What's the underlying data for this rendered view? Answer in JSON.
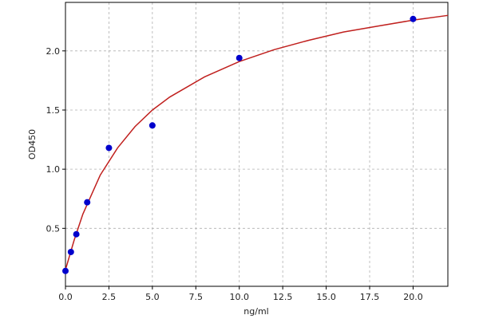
{
  "chart_data": {
    "type": "scatter",
    "x_label": "ng/ml",
    "y_label": "OD450",
    "xlim": [
      0,
      22
    ],
    "ylim": [
      0.01,
      2.41
    ],
    "xticks": [
      {
        "value": 0,
        "label": "0.0"
      },
      {
        "value": 2.5,
        "label": "2.5"
      },
      {
        "value": 5,
        "label": "5.0"
      },
      {
        "value": 7.5,
        "label": "7.5"
      },
      {
        "value": 10,
        "label": "10.0"
      },
      {
        "value": 12.5,
        "label": "12.5"
      },
      {
        "value": 15,
        "label": "15.0"
      },
      {
        "value": 17.5,
        "label": "17.5"
      },
      {
        "value": 20,
        "label": "20.0"
      }
    ],
    "yticks": [
      {
        "value": 0.5,
        "label": "0.5"
      },
      {
        "value": 1,
        "label": "1.0"
      },
      {
        "value": 1.5,
        "label": "1.5"
      },
      {
        "value": 2,
        "label": "2.0"
      }
    ],
    "grid": true,
    "series": [
      {
        "kind": "line",
        "color": "#c0201e",
        "x": [
          0,
          0.5,
          1,
          2,
          3,
          4,
          5,
          6,
          8,
          10,
          12,
          14,
          16,
          18,
          20,
          22
        ],
        "values": [
          0.15,
          0.4,
          0.62,
          0.95,
          1.18,
          1.36,
          1.5,
          1.61,
          1.78,
          1.91,
          2.01,
          2.09,
          2.16,
          2.21,
          2.26,
          2.3
        ]
      },
      {
        "kind": "points",
        "color": "#0000cc",
        "x": [
          0,
          0.3125,
          0.625,
          1.25,
          2.5,
          5,
          10,
          20
        ],
        "values": [
          0.14,
          0.3,
          0.45,
          0.72,
          1.18,
          1.37,
          1.94,
          2.27
        ]
      }
    ]
  }
}
